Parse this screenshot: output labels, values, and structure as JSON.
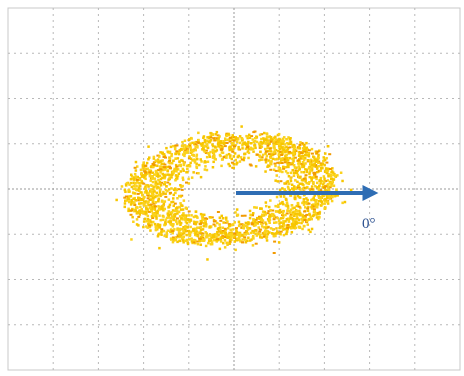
{
  "arrow_label": "0°"
}
